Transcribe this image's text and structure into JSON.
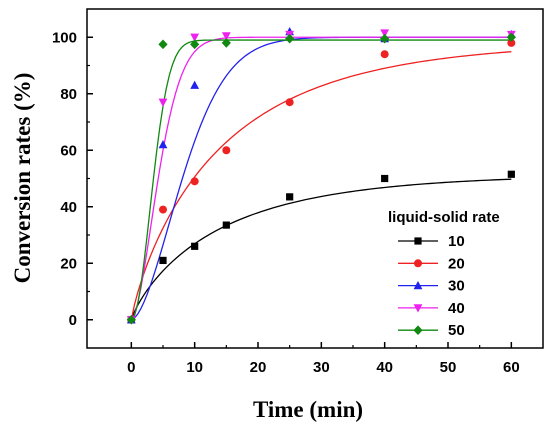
{
  "chart_data": {
    "type": "scatter",
    "xlabel": "Time (min)",
    "ylabel": "Conversion rates (%)",
    "xlim": [
      -7,
      65
    ],
    "ylim": [
      -10,
      110
    ],
    "xticks": [
      "0",
      "10",
      "20",
      "30",
      "40",
      "50",
      "60"
    ],
    "yticks": [
      "0",
      "20",
      "40",
      "60",
      "80",
      "100"
    ],
    "grid": false,
    "legend_title": "liquid-solid rate",
    "legend_position": "right",
    "series": [
      {
        "name": "10",
        "color": "#000000",
        "marker": "square",
        "x": [
          0,
          5,
          10,
          15,
          25,
          40,
          60
        ],
        "y": [
          0,
          21,
          26,
          33.5,
          43.5,
          50,
          51.5
        ],
        "curve": {
          "a": 51.5,
          "k": 0.07,
          "p": 0.85
        }
      },
      {
        "name": "20",
        "color": "#ee2222",
        "marker": "circle",
        "x": [
          0,
          5,
          10,
          15,
          25,
          40,
          60
        ],
        "y": [
          0,
          39,
          49,
          60,
          77,
          94,
          98
        ],
        "curve": {
          "a": 98.5,
          "k": 0.068,
          "p": 0.85
        }
      },
      {
        "name": "30",
        "color": "#2222ee",
        "marker": "triangle-up",
        "x": [
          0,
          5,
          10,
          25,
          40,
          60
        ],
        "y": [
          0,
          62,
          83,
          102,
          99.5,
          101
        ],
        "curve": {
          "a": 100,
          "k": 0.1,
          "p": 1.7
        }
      },
      {
        "name": "40",
        "color": "#ee22ee",
        "marker": "triangle-down",
        "x": [
          0,
          5,
          10,
          15,
          25,
          40,
          60
        ],
        "y": [
          0,
          77,
          100,
          100.5,
          101,
          101.5,
          101
        ],
        "curve": {
          "a": 100,
          "k": 0.19,
          "p": 1.7
        }
      },
      {
        "name": "50",
        "color": "#118811",
        "marker": "diamond",
        "x": [
          0,
          5,
          10,
          15,
          25,
          40,
          60
        ],
        "y": [
          0,
          97.5,
          97.5,
          98,
          99.5,
          99.5,
          100
        ],
        "curve": {
          "a": 99,
          "k": 0.24,
          "p": 2.0
        }
      }
    ]
  }
}
